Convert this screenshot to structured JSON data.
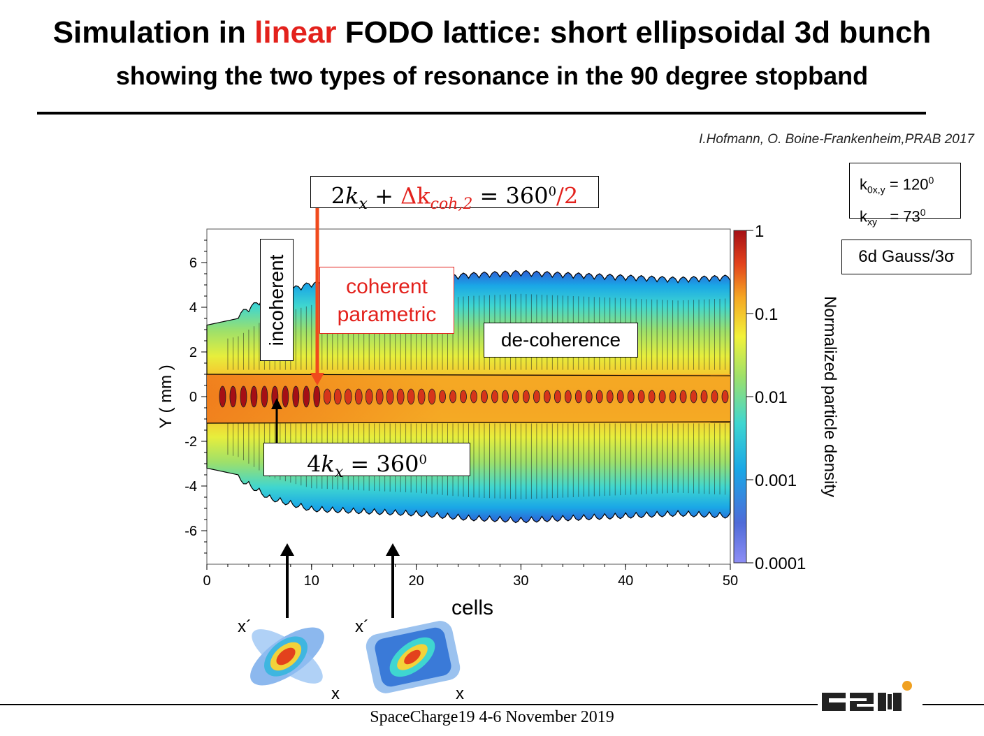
{
  "slide": {
    "title_before": "Simulation in ",
    "title_highlight": "linear",
    "title_after": " FODO lattice: short ellipsoidal 3d bunch",
    "subtitle": "showing the two types of resonance in the 90 degree stopband",
    "citation": "I.Hofmann, O. Boine-Frankenheim,PRAB 2017",
    "footer": "SpaceCharge19 4-6 November 2019",
    "logo_text": "GSI"
  },
  "params": {
    "k0_label": "k",
    "k0_sub": "0x,y",
    "k0_value": "= 120",
    "k0_sup": "0",
    "kxy_label": "k",
    "kxy_sub": "xy",
    "kxy_value": "= 73",
    "kxy_sup": "0"
  },
  "distribution": {
    "label": "6d Gauss/3σ"
  },
  "annotations": {
    "eq_top_part1": "2",
    "eq_top_k": "k",
    "eq_top_sub_x": "x",
    "eq_top_plus": " + ",
    "eq_top_delta": "Δk",
    "eq_top_sub_coh": "coh,2",
    "eq_top_eq": " = 360",
    "eq_top_sup": "0",
    "eq_top_half": "/2",
    "eq_bottom_part1": "4",
    "eq_bottom_k": "k",
    "eq_bottom_sub": "x",
    "eq_bottom_eq": " = 360",
    "eq_bottom_sup": "0",
    "coherent_line1": "coherent",
    "coherent_line2": "parametric",
    "decoherence": "de-coherence",
    "incoherent": "incoherent",
    "phase_x_prime": "x´",
    "phase_x": "x"
  },
  "colors": {
    "accent_red": "#e3211c",
    "core_dark_red": "#a50f15",
    "colorbar": [
      "#4f6bd8",
      "#1aa7e6",
      "#3fd6d0",
      "#9ee06a",
      "#f2f23a",
      "#f5a623",
      "#e3421c",
      "#a50f15"
    ]
  },
  "chart_data": {
    "type": "heatmap",
    "title": "",
    "xlabel": "cells",
    "ylabel": "Y ( mm )",
    "xlim": [
      0,
      50
    ],
    "ylim": [
      -7.5,
      7.5
    ],
    "x_ticks": [
      "0",
      "10",
      "20",
      "30",
      "40",
      "50"
    ],
    "y_ticks": [
      "6",
      "4",
      "2",
      "0",
      "-2",
      "-4",
      "-6"
    ],
    "colorbar_label": "Normalized particle density",
    "colorbar_scale": "log",
    "colorbar_ticks": [
      "1",
      "0.1",
      "0.01",
      "0.001",
      "0.0001"
    ],
    "colorbar_range": [
      0.0001,
      1
    ],
    "envelope_outer_mm": [
      [
        0,
        3.2
      ],
      [
        3,
        3.5
      ],
      [
        6,
        4.4
      ],
      [
        10,
        4.9
      ],
      [
        15,
        5.0
      ],
      [
        20,
        5.1
      ],
      [
        25,
        5.3
      ],
      [
        30,
        5.4
      ],
      [
        35,
        5.3
      ],
      [
        40,
        5.2
      ],
      [
        45,
        5.1
      ],
      [
        50,
        5.2
      ]
    ],
    "core_halfwidth_mm": [
      [
        0,
        1.1
      ],
      [
        10,
        1.2
      ],
      [
        20,
        0.9
      ],
      [
        30,
        1.0
      ],
      [
        40,
        1.0
      ],
      [
        50,
        1.1
      ]
    ],
    "core_oscillation_cells_period": 1,
    "grid": false
  }
}
